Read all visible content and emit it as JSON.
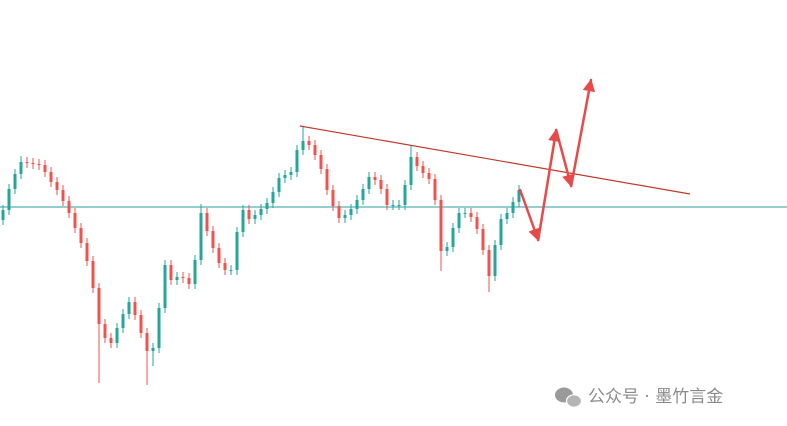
{
  "chart_data": {
    "type": "candlestick",
    "x": [
      0,
      1,
      2,
      3,
      4,
      5,
      6,
      7,
      8,
      9,
      10,
      11,
      12,
      13,
      14,
      15,
      16,
      17,
      18,
      19,
      20,
      21,
      22,
      23,
      24,
      25,
      26,
      27,
      28,
      29,
      30,
      31,
      32,
      33,
      34,
      35,
      36,
      37,
      38,
      39,
      40,
      41,
      42,
      43,
      44,
      45,
      46,
      47,
      48,
      49,
      50,
      51,
      52,
      53,
      54,
      55,
      56,
      57,
      58,
      59,
      60,
      61,
      62,
      63,
      64,
      65,
      66,
      67,
      68,
      69,
      70,
      71,
      72,
      73,
      74,
      75,
      76,
      77,
      78,
      79,
      80,
      81,
      82,
      83,
      84,
      85,
      86
    ],
    "open": [
      206,
      216,
      237,
      252,
      264,
      263,
      262,
      261,
      254,
      244,
      236,
      225,
      213,
      198,
      183,
      165,
      138,
      102,
      88,
      83,
      98,
      112,
      124,
      111,
      93,
      75,
      78,
      118,
      161,
      146,
      149,
      148,
      142,
      166,
      213,
      195,
      178,
      163,
      156,
      156,
      194,
      216,
      207,
      211,
      217,
      223,
      234,
      248,
      251,
      254,
      276,
      285,
      281,
      271,
      257,
      236,
      220,
      208,
      211,
      217,
      226,
      237,
      249,
      246,
      237,
      221,
      221,
      221,
      241,
      269,
      260,
      253,
      247,
      226,
      175,
      179,
      198,
      213,
      213,
      209,
      197,
      176,
      150,
      181,
      207,
      213,
      224
    ],
    "close": [
      216,
      237,
      252,
      264,
      263,
      262,
      261,
      254,
      244,
      236,
      225,
      213,
      198,
      183,
      165,
      138,
      102,
      88,
      83,
      98,
      112,
      124,
      111,
      93,
      75,
      78,
      118,
      161,
      146,
      149,
      148,
      142,
      166,
      213,
      195,
      178,
      163,
      156,
      156,
      194,
      216,
      207,
      211,
      217,
      223,
      234,
      248,
      251,
      254,
      276,
      285,
      281,
      271,
      257,
      236,
      220,
      208,
      211,
      217,
      226,
      237,
      249,
      246,
      237,
      221,
      221,
      221,
      241,
      269,
      260,
      253,
      247,
      226,
      175,
      179,
      198,
      213,
      213,
      209,
      197,
      176,
      150,
      181,
      207,
      213,
      224,
      236
    ],
    "high": [
      221,
      242,
      257,
      270,
      269,
      268,
      267,
      266,
      259,
      249,
      241,
      230,
      218,
      203,
      188,
      170,
      143,
      107,
      93,
      103,
      117,
      129,
      129,
      116,
      98,
      83,
      123,
      166,
      166,
      154,
      154,
      153,
      171,
      222,
      218,
      200,
      183,
      168,
      161,
      199,
      221,
      221,
      216,
      222,
      228,
      239,
      253,
      256,
      259,
      281,
      300,
      290,
      286,
      276,
      262,
      241,
      225,
      216,
      222,
      231,
      242,
      254,
      254,
      251,
      242,
      226,
      226,
      246,
      281,
      274,
      265,
      258,
      252,
      231,
      184,
      203,
      218,
      218,
      218,
      214,
      202,
      181,
      186,
      212,
      218,
      229,
      241
    ],
    "low": [
      201,
      211,
      232,
      247,
      258,
      257,
      256,
      249,
      239,
      231,
      220,
      208,
      193,
      178,
      160,
      133,
      43,
      83,
      78,
      78,
      93,
      107,
      106,
      88,
      41,
      60,
      73,
      113,
      141,
      141,
      143,
      137,
      137,
      161,
      190,
      173,
      158,
      151,
      151,
      151,
      189,
      202,
      202,
      206,
      212,
      218,
      229,
      243,
      246,
      249,
      271,
      276,
      266,
      252,
      231,
      215,
      203,
      203,
      206,
      212,
      221,
      232,
      241,
      232,
      216,
      216,
      216,
      216,
      236,
      255,
      248,
      242,
      221,
      155,
      170,
      174,
      193,
      208,
      204,
      192,
      171,
      134,
      145,
      176,
      202,
      208,
      219
    ],
    "up_color": "#26a69a",
    "down_color": "#ef5350",
    "xlim": [
      -0.5,
      130.67
    ],
    "ylim": [
      0,
      426
    ],
    "hline": {
      "y": 219,
      "color": "#2a9d9d"
    },
    "trendline": {
      "x": [
        49.5,
        114.5
      ],
      "y": [
        300,
        232
      ],
      "color": "#c0392b"
    },
    "arrows": {
      "x": [
        86.2,
        89.2,
        92.2,
        94.7,
        98
      ],
      "y": [
        236,
        186,
        296,
        240,
        346
      ],
      "color": "#e84a4a"
    },
    "watermark": "公众号 · 墨竹言金"
  }
}
